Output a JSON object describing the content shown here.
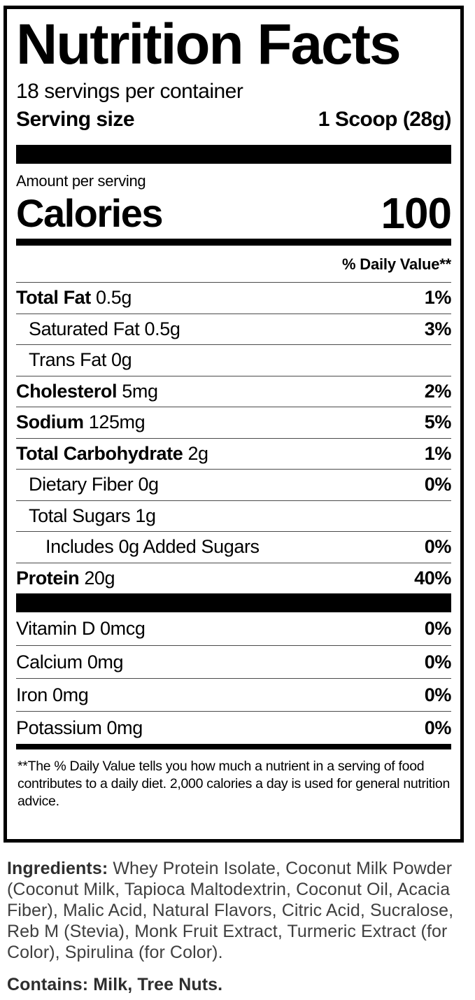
{
  "colors": {
    "background": "#ffffff",
    "label_text": "#000000",
    "ingredients_text": "#3f3f3f"
  },
  "label": {
    "title": "Nutrition Facts",
    "servings_per_container": "18 servings per container",
    "serving_size_label": "Serving size",
    "serving_size_value": "1 Scoop (28g)",
    "amount_per_serving": "Amount per serving",
    "calories_label": "Calories",
    "calories_value": "100",
    "daily_value_header": "% Daily Value**",
    "nutrients": [
      {
        "name": "Total Fat",
        "amount": "0.5g",
        "dv": "1%",
        "bold": true,
        "indent": 0
      },
      {
        "name": "Saturated Fat",
        "amount": "0.5g",
        "dv": "3%",
        "bold": false,
        "indent": 1
      },
      {
        "name": "Trans Fat",
        "amount": "0g",
        "dv": "",
        "bold": false,
        "indent": 1
      },
      {
        "name": "Cholesterol",
        "amount": "5mg",
        "dv": "2%",
        "bold": true,
        "indent": 0
      },
      {
        "name": "Sodium",
        "amount": "125mg",
        "dv": "5%",
        "bold": true,
        "indent": 0
      },
      {
        "name": "Total Carbohydrate",
        "amount": "2g",
        "dv": "1%",
        "bold": true,
        "indent": 0
      },
      {
        "name": "Dietary Fiber",
        "amount": "0g",
        "dv": "0%",
        "bold": false,
        "indent": 1
      },
      {
        "name": "Total Sugars",
        "amount": "1g",
        "dv": "",
        "bold": false,
        "indent": 1
      },
      {
        "name": "Includes 0g Added Sugars",
        "amount": "",
        "dv": "0%",
        "bold": false,
        "indent": 2
      },
      {
        "name": "Protein",
        "amount": "20g",
        "dv": "40%",
        "bold": true,
        "indent": 0
      }
    ],
    "micronutrients": [
      {
        "name": "Vitamin D",
        "amount": "0mcg",
        "dv": "0%"
      },
      {
        "name": "Calcium",
        "amount": "0mg",
        "dv": "0%"
      },
      {
        "name": "Iron",
        "amount": "0mg",
        "dv": "0%"
      },
      {
        "name": "Potassium",
        "amount": "0mg",
        "dv": "0%"
      }
    ],
    "footnote": "**The % Daily Value tells you how much a nutrient in a serving of food contributes to a daily diet. 2,000 calories a day is used for general nutrition advice."
  },
  "ingredients": {
    "label": "Ingredients:",
    "text": " Whey Protein Isolate, Coconut Milk Powder (Coconut Milk, Tapioca Maltodextrin, Coconut Oil, Acacia Fiber), Malic Acid, Natural Flavors, Citric Acid, Sucralose, Reb M (Stevia), Monk Fruit Extract, Turmeric Extract (for Color), Spirulina (for Color)."
  },
  "contains": "Contains: Milk, Tree Nuts."
}
